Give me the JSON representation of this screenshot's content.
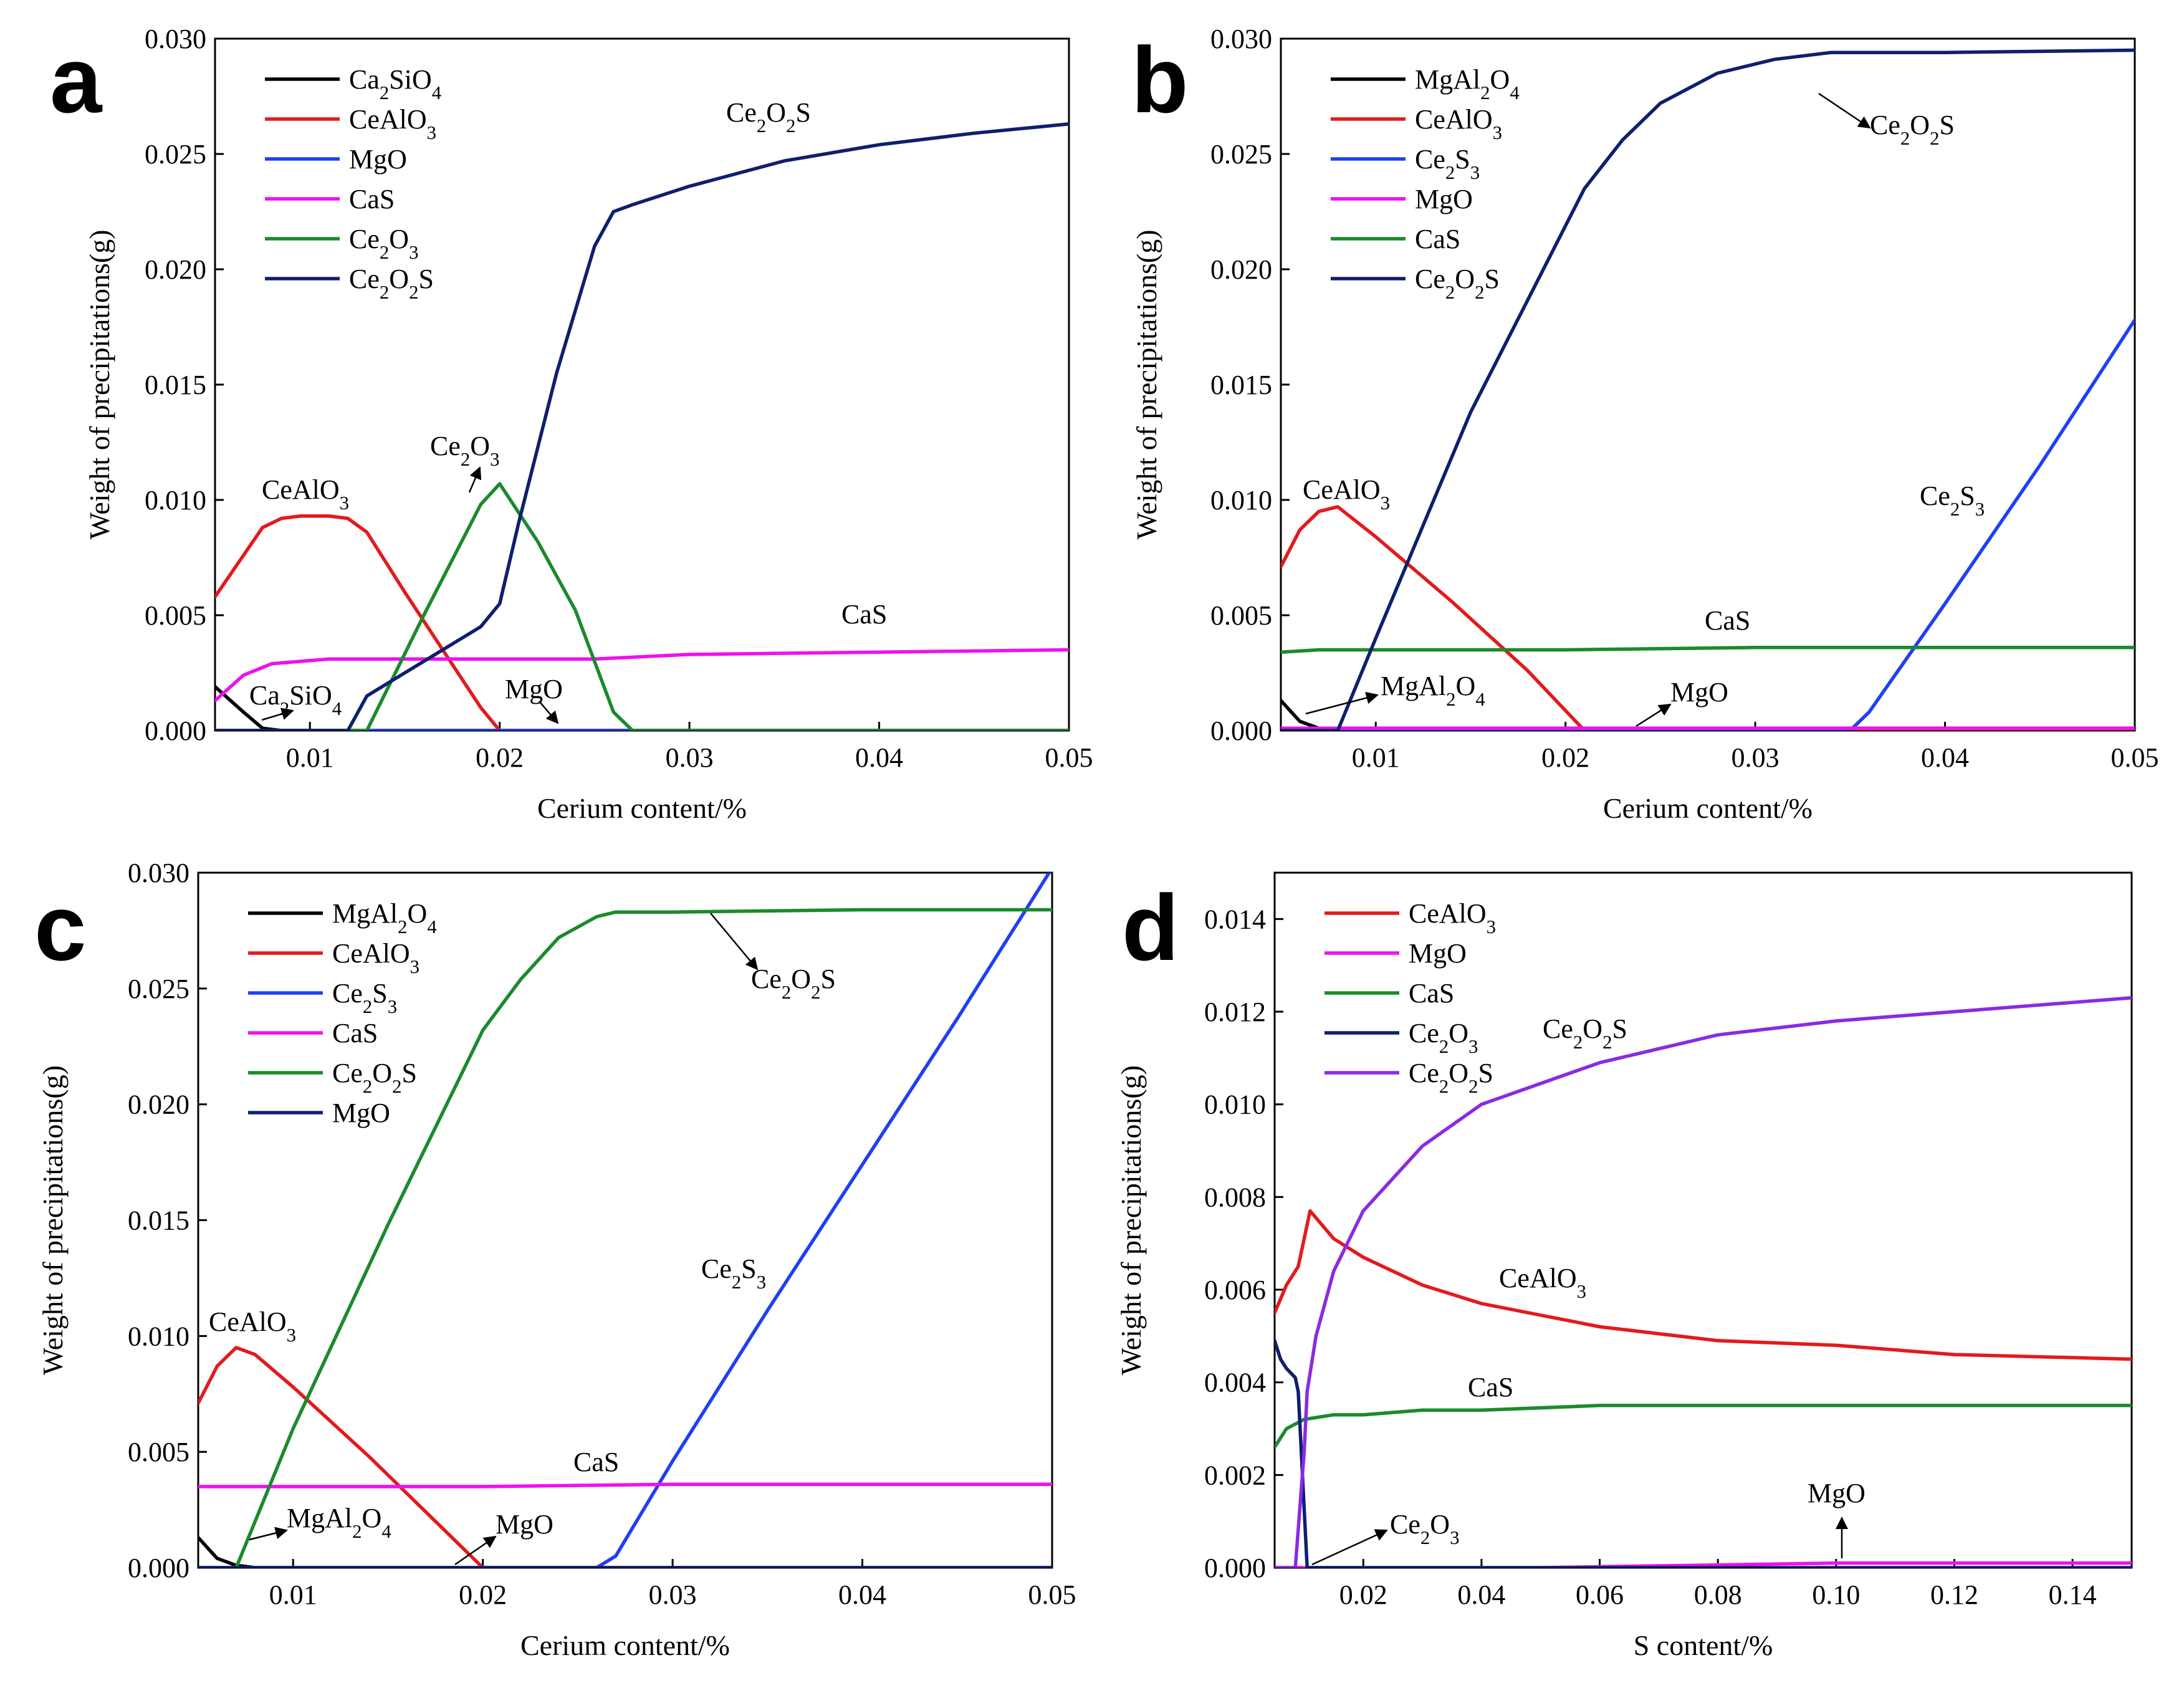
{
  "chart_data": [
    {
      "panel": "a",
      "type": "line",
      "xlabel": "Cerium content/%",
      "ylabel": "Weight of precipitations(g)",
      "xlim": [
        0.005,
        0.05
      ],
      "ylim": [
        0,
        0.03
      ],
      "xticks": [
        0.01,
        0.02,
        0.03,
        0.04,
        0.05
      ],
      "xtick_labels": [
        "0.01",
        "0.02",
        "0.03",
        "0.04",
        "0.05"
      ],
      "yticks": [
        0,
        0.005,
        0.01,
        0.015,
        0.02,
        0.025,
        0.03
      ],
      "ytick_labels": [
        "0.000",
        "0.005",
        "0.010",
        "0.015",
        "0.020",
        "0.025",
        "0.030"
      ],
      "legend_position": "top-left",
      "series": [
        {
          "name": "Ca2SiO4",
          "label": "Ca₂SiO₄",
          "color": "#000000",
          "x": [
            0.005,
            0.0065,
            0.0075,
            0.0085,
            0.05
          ],
          "y": [
            0.0019,
            0.0008,
            0.0001,
            0,
            0
          ]
        },
        {
          "name": "CeAlO3",
          "label": "CeAlO₃",
          "color": "#e31a1c",
          "x": [
            0.005,
            0.0065,
            0.0075,
            0.0085,
            0.0095,
            0.011,
            0.012,
            0.013,
            0.015,
            0.017,
            0.019,
            0.02,
            0.05
          ],
          "y": [
            0.0058,
            0.0076,
            0.0088,
            0.0092,
            0.0093,
            0.0093,
            0.0092,
            0.0086,
            0.006,
            0.0035,
            0.001,
            0,
            0
          ]
        },
        {
          "name": "MgO",
          "label": "MgO",
          "color": "#1f3ff5",
          "x": [
            0.005,
            0.05
          ],
          "y": [
            0,
            0
          ]
        },
        {
          "name": "CaS",
          "label": "CaS",
          "color": "#ee11ee",
          "x": [
            0.005,
            0.0065,
            0.008,
            0.0095,
            0.011,
            0.013,
            0.015,
            0.02,
            0.025,
            0.03,
            0.04,
            0.05
          ],
          "y": [
            0.0013,
            0.0024,
            0.0029,
            0.003,
            0.0031,
            0.0031,
            0.0031,
            0.0031,
            0.0031,
            0.0033,
            0.0034,
            0.0035
          ]
        },
        {
          "name": "Ce2O3",
          "label": "Ce₂O₃",
          "color": "#1b8a2c",
          "x": [
            0.005,
            0.013,
            0.016,
            0.019,
            0.02,
            0.022,
            0.024,
            0.026,
            0.027,
            0.05
          ],
          "y": [
            0,
            0,
            0.005,
            0.0098,
            0.0107,
            0.0082,
            0.0052,
            0.0008,
            0,
            0
          ]
        },
        {
          "name": "Ce2O2S",
          "label": "Ce₂O₂S",
          "color": "#0f1f6e",
          "x": [
            0.005,
            0.012,
            0.013,
            0.015,
            0.017,
            0.019,
            0.02,
            0.021,
            0.023,
            0.025,
            0.026,
            0.027,
            0.03,
            0.035,
            0.04,
            0.045,
            0.05
          ],
          "y": [
            0,
            0,
            0.0015,
            0.0025,
            0.0035,
            0.0045,
            0.0055,
            0.009,
            0.0155,
            0.021,
            0.0225,
            0.0228,
            0.0236,
            0.0247,
            0.0254,
            0.0259,
            0.0263
          ]
        }
      ],
      "annotations": [
        "Ce₂O₂S",
        "Ce₂O₃",
        "CeAlO₃",
        "CaS",
        "Ca₂SiO₄",
        "MgO"
      ]
    },
    {
      "panel": "b",
      "type": "line",
      "xlabel": "Cerium content/%",
      "ylabel": "Weight of precipitations(g)",
      "xlim": [
        0.005,
        0.05
      ],
      "ylim": [
        0,
        0.03
      ],
      "xticks": [
        0.01,
        0.02,
        0.03,
        0.04,
        0.05
      ],
      "xtick_labels": [
        "0.01",
        "0.02",
        "0.03",
        "0.04",
        "0.05"
      ],
      "yticks": [
        0,
        0.005,
        0.01,
        0.015,
        0.02,
        0.025,
        0.03
      ],
      "ytick_labels": [
        "0.000",
        "0.005",
        "0.010",
        "0.015",
        "0.020",
        "0.025",
        "0.030"
      ],
      "legend_position": "top-left",
      "series": [
        {
          "name": "MgAl2O4",
          "label": "MgAl₂O₄",
          "color": "#000000",
          "x": [
            0.005,
            0.006,
            0.007,
            0.008,
            0.05
          ],
          "y": [
            0.0013,
            0.0004,
            0.0001,
            0,
            0
          ]
        },
        {
          "name": "CeAlO3",
          "label": "CeAlO₃",
          "color": "#e31a1c",
          "x": [
            0.005,
            0.006,
            0.007,
            0.008,
            0.01,
            0.014,
            0.018,
            0.021,
            0.05
          ],
          "y": [
            0.0071,
            0.0087,
            0.0095,
            0.0097,
            0.0084,
            0.0056,
            0.0026,
            0,
            0
          ]
        },
        {
          "name": "Ce2S3",
          "label": "Ce₂S₃",
          "color": "#1f3ff5",
          "x": [
            0.005,
            0.035,
            0.036,
            0.04,
            0.045,
            0.05
          ],
          "y": [
            0,
            0,
            0.0008,
            0.0055,
            0.0115,
            0.0178
          ]
        },
        {
          "name": "MgO",
          "label": "MgO",
          "color": "#ee11ee",
          "x": [
            0.005,
            0.05
          ],
          "y": [
            0.0001,
            0.0001
          ]
        },
        {
          "name": "CaS",
          "label": "CaS",
          "color": "#1b8a2c",
          "x": [
            0.005,
            0.007,
            0.02,
            0.03,
            0.04,
            0.05
          ],
          "y": [
            0.0034,
            0.0035,
            0.0035,
            0.0036,
            0.0036,
            0.0036
          ]
        },
        {
          "name": "Ce2O2S",
          "label": "Ce₂O₂S",
          "color": "#0f1f6e",
          "x": [
            0.005,
            0.008,
            0.01,
            0.015,
            0.021,
            0.023,
            0.025,
            0.028,
            0.031,
            0.034,
            0.035,
            0.04,
            0.05
          ],
          "y": [
            0,
            0,
            0.004,
            0.0138,
            0.0235,
            0.0256,
            0.0272,
            0.0285,
            0.0291,
            0.0294,
            0.0294,
            0.0294,
            0.0295
          ]
        }
      ],
      "annotations": [
        "Ce₂O₂S",
        "CeAlO₃",
        "Ce₂S₃",
        "CaS",
        "MgAl₂O₄",
        "MgO"
      ]
    },
    {
      "panel": "c",
      "type": "line",
      "xlabel": "Cerium content/%",
      "ylabel": "Weight of precipitations(g)",
      "xlim": [
        0.005,
        0.05
      ],
      "ylim": [
        0,
        0.03
      ],
      "xticks": [
        0.01,
        0.02,
        0.03,
        0.04,
        0.05
      ],
      "xtick_labels": [
        "0.01",
        "0.02",
        "0.03",
        "0.04",
        "0.05"
      ],
      "yticks": [
        0,
        0.005,
        0.01,
        0.015,
        0.02,
        0.025,
        0.03
      ],
      "ytick_labels": [
        "0.000",
        "0.005",
        "0.010",
        "0.015",
        "0.020",
        "0.025",
        "0.030"
      ],
      "legend_position": "top-left",
      "series": [
        {
          "name": "MgAl2O4",
          "label": "MgAl₂O₄",
          "color": "#000000",
          "x": [
            0.005,
            0.006,
            0.007,
            0.008,
            0.05
          ],
          "y": [
            0.0013,
            0.0004,
            0.0001,
            0,
            0
          ]
        },
        {
          "name": "CeAlO3",
          "label": "CeAlO₃",
          "color": "#e31a1c",
          "x": [
            0.005,
            0.006,
            0.007,
            0.008,
            0.01,
            0.014,
            0.018,
            0.02,
            0.05
          ],
          "y": [
            0.0071,
            0.0087,
            0.0095,
            0.0092,
            0.0078,
            0.0048,
            0.0016,
            0,
            0
          ]
        },
        {
          "name": "Ce2S3",
          "label": "Ce₂S₃",
          "color": "#1f3ff5",
          "x": [
            0.005,
            0.026,
            0.027,
            0.03,
            0.035,
            0.04,
            0.045,
            0.05
          ],
          "y": [
            0,
            0,
            0.0005,
            0.0046,
            0.0111,
            0.0174,
            0.0237,
            0.0302
          ]
        },
        {
          "name": "CaS",
          "label": "CaS",
          "color": "#ee11ee",
          "x": [
            0.005,
            0.02,
            0.03,
            0.04,
            0.05
          ],
          "y": [
            0.0035,
            0.0035,
            0.0036,
            0.0036,
            0.0036
          ]
        },
        {
          "name": "Ce2O2S",
          "label": "Ce₂O₂S",
          "color": "#1b8a2c",
          "x": [
            0.005,
            0.007,
            0.01,
            0.015,
            0.02,
            0.022,
            0.024,
            0.026,
            0.027,
            0.03,
            0.04,
            0.05
          ],
          "y": [
            0,
            0,
            0.006,
            0.0148,
            0.0232,
            0.0254,
            0.0272,
            0.0281,
            0.0283,
            0.0283,
            0.0284,
            0.0284
          ]
        },
        {
          "name": "MgO",
          "label": "MgO",
          "color": "#0f1f6e",
          "x": [
            0.005,
            0.05
          ],
          "y": [
            0,
            0
          ]
        }
      ],
      "annotations": [
        "Ce₂O₂S",
        "CeAlO₃",
        "Ce₂S₃",
        "CaS",
        "MgAl₂O₄",
        "MgO"
      ]
    },
    {
      "panel": "d",
      "type": "line",
      "xlabel": "S content/%",
      "ylabel": "Weight of precipitations(g)",
      "xlim": [
        0.005,
        0.15
      ],
      "ylim": [
        0,
        0.015
      ],
      "xticks": [
        0.02,
        0.04,
        0.06,
        0.08,
        0.1,
        0.12,
        0.14
      ],
      "xtick_labels": [
        "0.02",
        "0.04",
        "0.06",
        "0.08",
        "0.10",
        "0.12",
        "0.14"
      ],
      "yticks": [
        0,
        0.002,
        0.004,
        0.006,
        0.008,
        0.01,
        0.012,
        0.014
      ],
      "ytick_labels": [
        "0.000",
        "0.002",
        "0.004",
        "0.006",
        "0.008",
        "0.010",
        "0.012",
        "0.014"
      ],
      "legend_position": "top-left",
      "series": [
        {
          "name": "CeAlO3",
          "label": "CeAlO₃",
          "color": "#e31a1c",
          "x": [
            0.005,
            0.007,
            0.009,
            0.011,
            0.015,
            0.02,
            0.03,
            0.04,
            0.06,
            0.08,
            0.1,
            0.12,
            0.15
          ],
          "y": [
            0.0055,
            0.0061,
            0.0065,
            0.0077,
            0.0071,
            0.0067,
            0.0061,
            0.0057,
            0.0052,
            0.0049,
            0.0048,
            0.0046,
            0.0045
          ]
        },
        {
          "name": "MgO",
          "label": "MgO",
          "color": "#ee11ee",
          "x": [
            0.005,
            0.05,
            0.1,
            0.15
          ],
          "y": [
            0,
            0,
            0.0001,
            0.0001
          ]
        },
        {
          "name": "CaS",
          "label": "CaS",
          "color": "#1b8a2c",
          "x": [
            0.005,
            0.007,
            0.01,
            0.015,
            0.02,
            0.03,
            0.04,
            0.06,
            0.08,
            0.1,
            0.12,
            0.15
          ],
          "y": [
            0.0026,
            0.003,
            0.0032,
            0.0033,
            0.0033,
            0.0034,
            0.0034,
            0.0035,
            0.0035,
            0.0035,
            0.0035,
            0.0035
          ]
        },
        {
          "name": "Ce2O3",
          "label": "Ce₂O₃",
          "color": "#0f1f6e",
          "x": [
            0.005,
            0.006,
            0.007,
            0.0085,
            0.009,
            0.0105,
            0.15
          ],
          "y": [
            0.0049,
            0.0045,
            0.0043,
            0.0041,
            0.0038,
            0,
            0
          ]
        },
        {
          "name": "Ce2O2S",
          "label": "Ce₂O₂S",
          "color": "#8a2be2",
          "x": [
            0.005,
            0.0085,
            0.01,
            0.0105,
            0.012,
            0.015,
            0.02,
            0.03,
            0.04,
            0.06,
            0.08,
            0.1,
            0.12,
            0.15
          ],
          "y": [
            0,
            0,
            0.0025,
            0.0038,
            0.005,
            0.0064,
            0.0077,
            0.0091,
            0.01,
            0.0109,
            0.0115,
            0.0118,
            0.012,
            0.0123
          ]
        }
      ],
      "annotations": [
        "Ce₂O₂S",
        "CeAlO₃",
        "CaS",
        "Ce₂O₃",
        "MgO"
      ]
    }
  ]
}
